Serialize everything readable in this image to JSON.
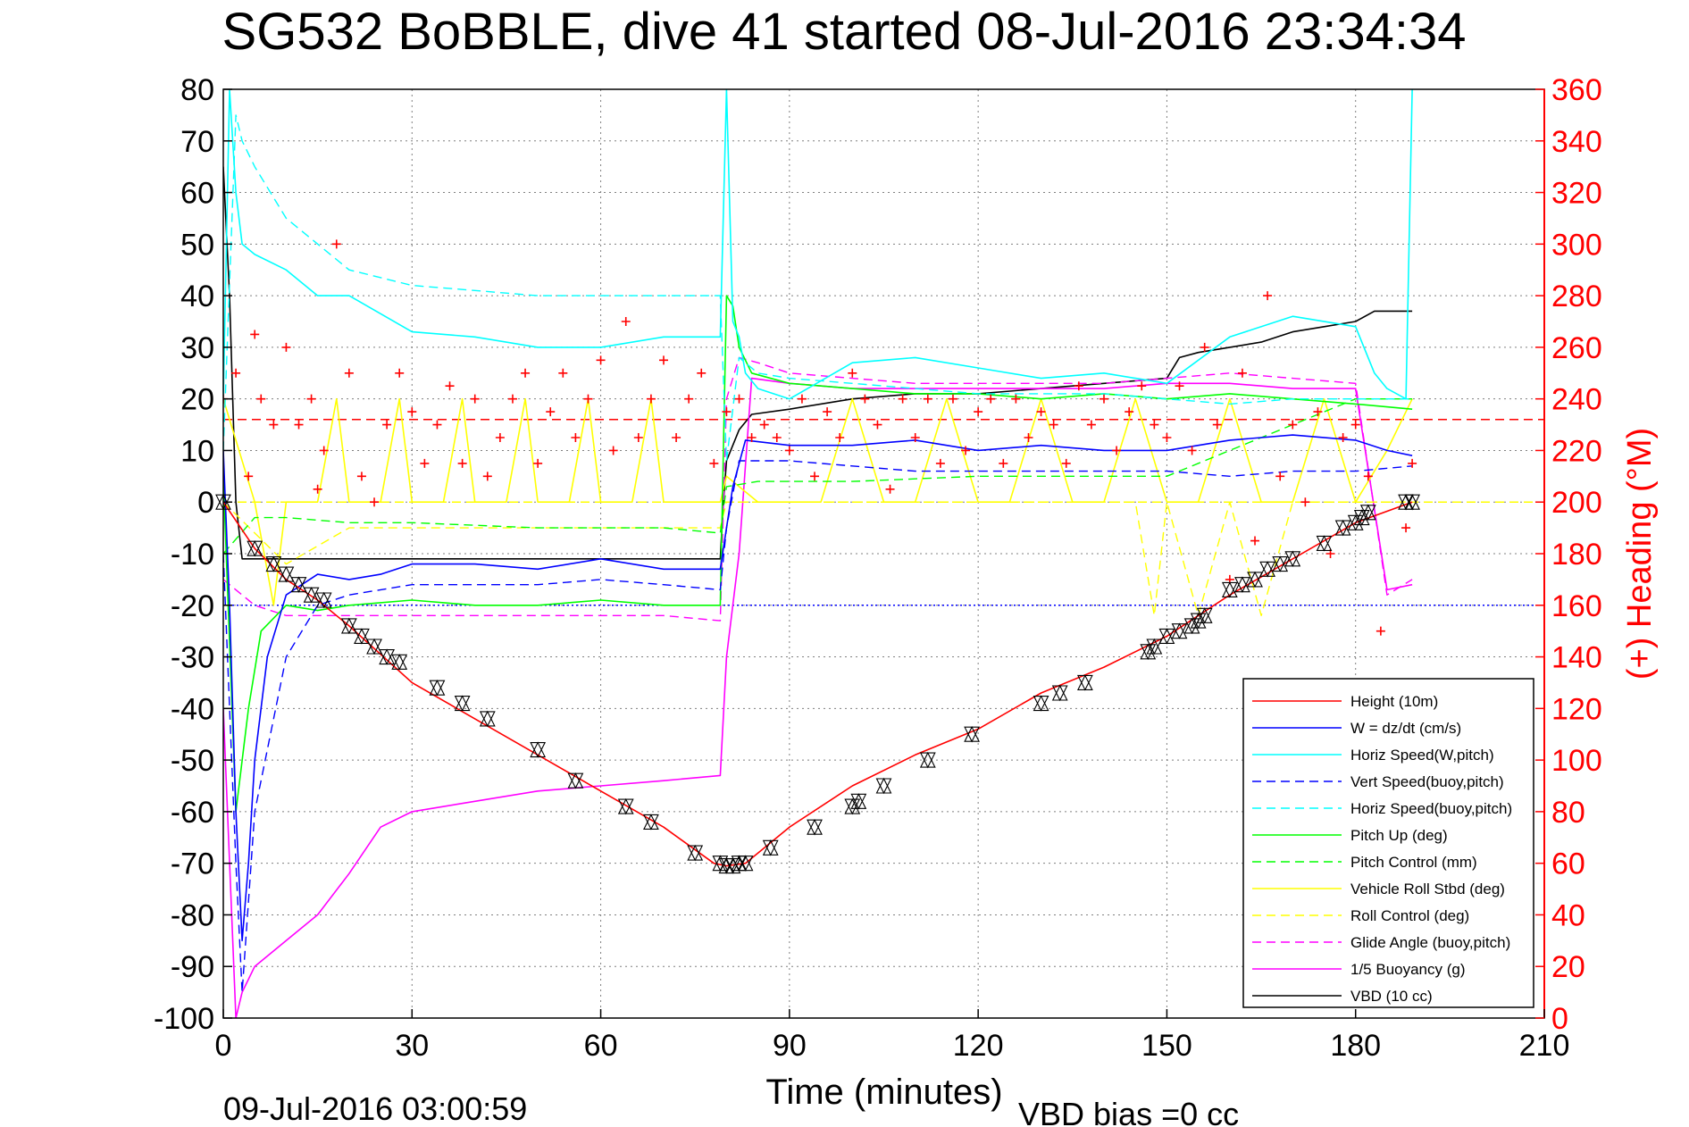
{
  "chart_data": {
    "type": "line",
    "title": "SG532 BoBBLE, dive 41 started 08-Jul-2016 23:34:34",
    "xlabel": "Time (minutes)",
    "ylabel": "",
    "y2label": "(+) Heading (°M)",
    "xlim": [
      0,
      210
    ],
    "ylim": [
      -100,
      80
    ],
    "y2lim": [
      0,
      360
    ],
    "xticks": [
      "0",
      "30",
      "60",
      "90",
      "120",
      "150",
      "180",
      "210"
    ],
    "yticks": [
      "80",
      "70",
      "60",
      "50",
      "40",
      "30",
      "20",
      "10",
      "0",
      "-10",
      "-20",
      "-30",
      "-40",
      "-50",
      "-60",
      "-70",
      "-80",
      "-90",
      "-100"
    ],
    "y2ticks": [
      "360",
      "340",
      "320",
      "300",
      "280",
      "260",
      "240",
      "220",
      "200",
      "180",
      "160",
      "140",
      "120",
      "100",
      "80",
      "60",
      "40",
      "20",
      "0"
    ],
    "grid": true,
    "legend_position": "lower-right",
    "footer_left": "09-Jul-2016 03:00:59",
    "footer_right": "VBD bias =0 cc",
    "colors": {
      "height": "#ff0000",
      "w": "#0000ff",
      "horiz_w": "#00ffff",
      "pitch_up": "#00ff00",
      "roll": "#ffff00",
      "glide": "#ff00ff",
      "vbd": "#000000",
      "heading": "#ff0000"
    },
    "series": [
      {
        "name": "Height (10m)",
        "color": "#ff0000",
        "dash": "solid",
        "x": [
          0,
          5,
          10,
          15,
          20,
          30,
          40,
          50,
          60,
          70,
          78,
          80,
          83,
          90,
          100,
          110,
          120,
          130,
          140,
          150,
          160,
          170,
          180,
          189
        ],
        "values": [
          0,
          -9,
          -15,
          -19,
          -24,
          -35,
          -42,
          -49,
          -56,
          -63,
          -70,
          -70.5,
          -70,
          -63,
          -55,
          -49,
          -44,
          -37,
          -32,
          -26,
          -18,
          -11,
          -4,
          0
        ]
      },
      {
        "name": "W = dz/dt (cm/s)",
        "color": "#0000ff",
        "dash": "solid",
        "x": [
          0,
          1,
          2,
          3,
          4,
          5,
          7,
          10,
          15,
          20,
          25,
          30,
          40,
          50,
          60,
          70,
          79,
          80,
          81,
          83,
          90,
          100,
          110,
          120,
          130,
          140,
          150,
          160,
          170,
          180,
          185,
          189
        ],
        "values": [
          10,
          -20,
          -60,
          -85,
          -70,
          -50,
          -30,
          -18,
          -14,
          -15,
          -14,
          -12,
          -12,
          -13,
          -11,
          -13,
          -13,
          -5,
          3,
          12,
          11,
          11,
          12,
          10,
          11,
          10,
          10,
          12,
          13,
          12,
          10,
          9
        ]
      },
      {
        "name": "Horiz Speed(W,pitch)",
        "color": "#00ffff",
        "dash": "solid",
        "x": [
          0,
          1,
          2,
          3,
          5,
          10,
          15,
          20,
          30,
          40,
          50,
          60,
          70,
          79,
          80,
          81,
          82,
          83,
          85,
          90,
          100,
          110,
          120,
          130,
          140,
          150,
          160,
          170,
          180,
          183,
          185,
          188,
          189
        ],
        "values": [
          20,
          80,
          60,
          50,
          48,
          45,
          40,
          40,
          33,
          32,
          30,
          30,
          32,
          32,
          80,
          35,
          32,
          25,
          22,
          20,
          27,
          28,
          26,
          24,
          25,
          23,
          32,
          36,
          34,
          25,
          22,
          20,
          80
        ]
      },
      {
        "name": "Vert Speed(buoy,pitch)",
        "color": "#0000ff",
        "dash": "dashed",
        "x": [
          0,
          2,
          3,
          5,
          10,
          15,
          20,
          30,
          40,
          50,
          60,
          70,
          79,
          80,
          82,
          85,
          90,
          100,
          110,
          120,
          130,
          140,
          150,
          160,
          170,
          180,
          189
        ],
        "values": [
          -10,
          -70,
          -95,
          -60,
          -30,
          -20,
          -18,
          -16,
          -16,
          -16,
          -15,
          -16,
          -17,
          -5,
          8,
          8,
          8,
          7,
          6,
          6,
          6,
          6,
          6,
          5,
          6,
          6,
          7
        ]
      },
      {
        "name": "Horiz Speed(buoy,pitch)",
        "color": "#00ffff",
        "dash": "dashed",
        "x": [
          0,
          2,
          3,
          5,
          10,
          20,
          30,
          40,
          50,
          60,
          70,
          79,
          80,
          82,
          85,
          90,
          100,
          110,
          120,
          130,
          140,
          150,
          160,
          170,
          180,
          189
        ],
        "values": [
          10,
          75,
          70,
          65,
          55,
          45,
          42,
          41,
          40,
          40,
          40,
          40,
          8,
          28,
          25,
          24,
          23,
          22,
          21,
          21,
          21,
          20,
          19,
          20,
          20,
          20
        ]
      },
      {
        "name": "Pitch Up (deg)",
        "color": "#00ff00",
        "dash": "solid",
        "x": [
          0,
          2,
          4,
          6,
          10,
          15,
          20,
          30,
          40,
          50,
          60,
          70,
          79,
          80,
          81,
          82,
          84,
          90,
          100,
          110,
          120,
          130,
          140,
          150,
          160,
          170,
          180,
          189
        ],
        "values": [
          5,
          -60,
          -40,
          -25,
          -20,
          -21,
          -20,
          -19,
          -20,
          -20,
          -19,
          -20,
          -20,
          40,
          38,
          30,
          25,
          23,
          22,
          21,
          21,
          20,
          21,
          20,
          21,
          20,
          19,
          18
        ]
      },
      {
        "name": "Pitch Control (mm)",
        "color": "#00ff00",
        "dash": "dashed",
        "x": [
          0,
          5,
          10,
          20,
          30,
          50,
          70,
          79,
          80,
          85,
          100,
          120,
          140,
          150,
          160,
          170,
          180,
          189
        ],
        "values": [
          -10,
          -3,
          -3,
          -4,
          -4,
          -5,
          -5,
          -6,
          3,
          4,
          4,
          5,
          5,
          5,
          10,
          15,
          20,
          20
        ]
      },
      {
        "name": "Vehicle Roll Stbd (deg)",
        "color": "#ffff00",
        "dash": "solid",
        "x": [
          0,
          5,
          8,
          10,
          15,
          18,
          20,
          25,
          28,
          30,
          35,
          38,
          40,
          45,
          48,
          50,
          55,
          58,
          60,
          65,
          68,
          70,
          75,
          79,
          80,
          85,
          90,
          95,
          100,
          105,
          110,
          115,
          120,
          125,
          130,
          135,
          140,
          145,
          150,
          155,
          160,
          165,
          170,
          175,
          180,
          185,
          189
        ],
        "values": [
          20,
          0,
          -20,
          0,
          0,
          20,
          0,
          0,
          20,
          0,
          0,
          20,
          0,
          0,
          20,
          0,
          0,
          20,
          0,
          0,
          20,
          0,
          0,
          0,
          5,
          0,
          0,
          0,
          20,
          0,
          0,
          20,
          0,
          0,
          20,
          0,
          0,
          20,
          0,
          0,
          20,
          0,
          0,
          20,
          0,
          10,
          20
        ]
      },
      {
        "name": "Roll Control (deg)",
        "color": "#ffff00",
        "dash": "dashed",
        "x": [
          0,
          10,
          20,
          40,
          60,
          79,
          80,
          90,
          120,
          145,
          148,
          150,
          155,
          160,
          165,
          170,
          180,
          189
        ],
        "values": [
          0,
          -12,
          -5,
          -5,
          -5,
          -5,
          0,
          0,
          0,
          0,
          -22,
          0,
          -22,
          0,
          -22,
          0,
          0,
          0
        ]
      },
      {
        "name": "Glide Angle (buoy,pitch)",
        "color": "#ff00ff",
        "dash": "dashed",
        "x": [
          0,
          5,
          10,
          20,
          30,
          40,
          50,
          60,
          70,
          79,
          80,
          82,
          85,
          90,
          100,
          110,
          120,
          130,
          140,
          150,
          160,
          170,
          180,
          185,
          189
        ],
        "values": [
          -15,
          -20,
          -22,
          -22,
          -22,
          -22,
          -22,
          -22,
          -22,
          -23,
          20,
          28,
          27,
          25,
          24,
          23,
          23,
          23,
          23,
          24,
          25,
          24,
          23,
          -18,
          -15
        ]
      },
      {
        "name": "1/5 Buoyancy (g)",
        "color": "#ff00ff",
        "dash": "solid",
        "x": [
          0,
          2,
          3,
          5,
          10,
          15,
          20,
          25,
          30,
          40,
          50,
          60,
          70,
          79,
          80,
          82,
          84,
          90,
          100,
          110,
          120,
          130,
          140,
          150,
          160,
          170,
          180,
          185,
          189
        ],
        "values": [
          -40,
          -100,
          -95,
          -90,
          -85,
          -80,
          -72,
          -63,
          -60,
          -58,
          -56,
          -55,
          -54,
          -53,
          -30,
          -10,
          24,
          23,
          22,
          22,
          22,
          22,
          22,
          23,
          23,
          22,
          22,
          -17,
          -16
        ]
      },
      {
        "name": "VBD (10 cc)",
        "color": "#000000",
        "dash": "solid",
        "x": [
          0,
          1,
          2,
          3,
          79,
          79.5,
          80,
          82,
          84,
          90,
          100,
          110,
          120,
          130,
          140,
          150,
          152,
          155,
          160,
          165,
          170,
          175,
          180,
          183,
          189
        ],
        "values": [
          65,
          40,
          0,
          -11,
          -11,
          0,
          8,
          14,
          17,
          18,
          20,
          21,
          21,
          22,
          23,
          24,
          28,
          29,
          30,
          31,
          33,
          34,
          35,
          37,
          37
        ]
      }
    ],
    "heading_series": {
      "name": "Heading",
      "axis": "right",
      "x": [
        0,
        2,
        4,
        5,
        6,
        8,
        10,
        12,
        14,
        15,
        16,
        18,
        20,
        22,
        24,
        26,
        28,
        30,
        32,
        34,
        36,
        38,
        40,
        42,
        44,
        46,
        48,
        50,
        52,
        54,
        56,
        58,
        60,
        62,
        64,
        66,
        68,
        70,
        72,
        74,
        76,
        78,
        80,
        82,
        84,
        86,
        88,
        90,
        92,
        94,
        96,
        98,
        100,
        102,
        104,
        106,
        108,
        110,
        112,
        114,
        116,
        118,
        120,
        122,
        124,
        126,
        128,
        130,
        132,
        134,
        136,
        138,
        140,
        142,
        144,
        146,
        148,
        150,
        152,
        154,
        156,
        158,
        160,
        162,
        164,
        166,
        168,
        170,
        172,
        174,
        176,
        178,
        180,
        182,
        184,
        186,
        188,
        189
      ],
      "values": [
        240,
        250,
        210,
        265,
        240,
        230,
        260,
        230,
        240,
        205,
        220,
        300,
        250,
        210,
        200,
        230,
        250,
        235,
        215,
        230,
        245,
        215,
        240,
        210,
        225,
        240,
        250,
        215,
        235,
        250,
        225,
        240,
        255,
        220,
        270,
        225,
        240,
        255,
        225,
        240,
        250,
        215,
        235,
        240,
        225,
        230,
        225,
        220,
        240,
        210,
        235,
        225,
        250,
        240,
        230,
        205,
        240,
        225,
        240,
        215,
        240,
        220,
        235,
        240,
        215,
        240,
        225,
        235,
        230,
        215,
        245,
        230,
        240,
        220,
        235,
        245,
        230,
        225,
        245,
        220,
        260,
        230,
        170,
        250,
        185,
        280,
        210,
        230,
        200,
        235,
        180,
        225,
        230,
        210,
        150,
        130,
        190,
        215
      ]
    },
    "reference_lines": [
      {
        "name": "Heading reference",
        "color": "#ff0000",
        "dash": "dashed",
        "axis": "right",
        "value": 232
      },
      {
        "name": "Buoyancy reference",
        "color": "#0000ff",
        "dash": "dotted",
        "axis": "left",
        "value": -20
      },
      {
        "name": "Roll Control zero",
        "color": "#ffff00",
        "dash": "dashed",
        "axis": "left",
        "value": 0
      }
    ],
    "depth_markers": {
      "x": [
        0,
        5,
        8,
        10,
        12,
        14,
        16,
        20,
        22,
        24,
        26,
        28,
        34,
        38,
        42,
        50,
        56,
        64,
        68,
        75,
        79,
        80,
        81,
        82,
        83,
        87,
        94,
        100,
        101,
        105,
        112,
        119,
        130,
        133,
        137,
        147,
        148,
        150,
        152,
        154,
        155,
        156,
        160,
        162,
        164,
        166,
        168,
        170,
        175,
        178,
        180,
        181,
        182,
        188,
        189
      ],
      "values": [
        0,
        -9,
        -12,
        -14,
        -16,
        -18,
        -19,
        -24,
        -26,
        -28,
        -30,
        -31,
        -36,
        -39,
        -42,
        -48,
        -54,
        -59,
        -62,
        -68,
        -70,
        -70.5,
        -70.5,
        -70,
        -70,
        -67,
        -63,
        -59,
        -58,
        -55,
        -50,
        -45,
        -39,
        -37,
        -35,
        -29,
        -28,
        -26,
        -25,
        -24,
        -23,
        -22,
        -17,
        -16,
        -15,
        -13,
        -12,
        -11,
        -8,
        -5,
        -4,
        -3,
        -2,
        0,
        0
      ]
    }
  }
}
